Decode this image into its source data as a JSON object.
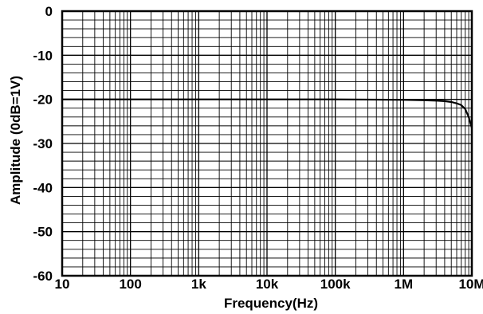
{
  "chart_data": {
    "type": "line",
    "xlabel": "Frequency(Hz)",
    "ylabel": "Amplitude (0dB=1V)",
    "x_scale": "log",
    "xlim": [
      10,
      10000000
    ],
    "ylim": [
      -60,
      0
    ],
    "x_ticks": [
      {
        "value": 10,
        "label": "10"
      },
      {
        "value": 100,
        "label": "100"
      },
      {
        "value": 1000,
        "label": "1k"
      },
      {
        "value": 10000,
        "label": "10k"
      },
      {
        "value": 100000,
        "label": "100k"
      },
      {
        "value": 1000000,
        "label": "1M"
      },
      {
        "value": 10000000,
        "label": "10M"
      }
    ],
    "y_ticks": [
      {
        "value": 0,
        "label": "0"
      },
      {
        "value": -10,
        "label": "-10"
      },
      {
        "value": -20,
        "label": "-20"
      },
      {
        "value": -30,
        "label": "-30"
      },
      {
        "value": -40,
        "label": "-40"
      },
      {
        "value": -50,
        "label": "-50"
      },
      {
        "value": -60,
        "label": "-60"
      }
    ],
    "grid": true,
    "series": [
      {
        "color": "#000000",
        "x": [
          10,
          100,
          1000,
          10000,
          100000,
          1000000,
          2000000,
          3000000,
          4000000,
          5000000,
          6000000,
          7000000,
          8000000,
          9000000,
          10000000
        ],
        "y": [
          -20,
          -20,
          -20,
          -20,
          -20,
          -20.1,
          -20.2,
          -20.3,
          -20.4,
          -20.6,
          -20.9,
          -21.3,
          -22.2,
          -24,
          -26.5
        ]
      }
    ]
  }
}
